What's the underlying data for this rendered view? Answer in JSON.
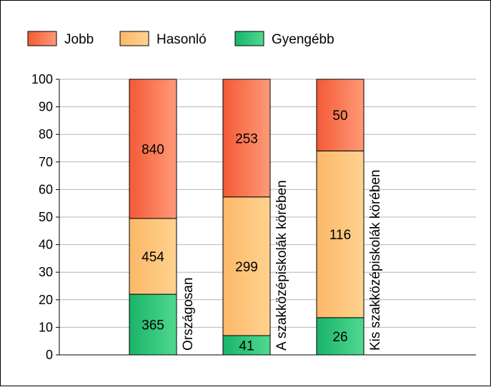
{
  "chart_data": {
    "type": "bar",
    "stacked": true,
    "categories": [
      "Országosan",
      "A szakközépiskolák körében",
      "Kis szakközépiskolák körében"
    ],
    "series": [
      {
        "name": "Gyengébb",
        "color_from": "#1ab46a",
        "color_to": "#4fd98f",
        "values": [
          22,
          7,
          13.5
        ],
        "labels": [
          "365",
          "41",
          "26"
        ]
      },
      {
        "name": "Hasonló",
        "color_from": "#fbb868",
        "color_to": "#ffd28f",
        "values": [
          27.5,
          50.3,
          60.5
        ],
        "labels": [
          "454",
          "299",
          "116"
        ]
      },
      {
        "name": "Jobb",
        "color_from": "#f45a36",
        "color_to": "#ff9a78",
        "values": [
          50.5,
          42.7,
          26
        ],
        "labels": [
          "840",
          "253",
          "50"
        ]
      }
    ],
    "legend_order": [
      "Jobb",
      "Hasonló",
      "Gyengébb"
    ],
    "ylim": [
      0,
      100
    ],
    "yticks": [
      "0",
      "10",
      "20",
      "30",
      "40",
      "50",
      "60",
      "70",
      "80",
      "90",
      "100"
    ],
    "grid": true,
    "legend_position": "top-left"
  }
}
